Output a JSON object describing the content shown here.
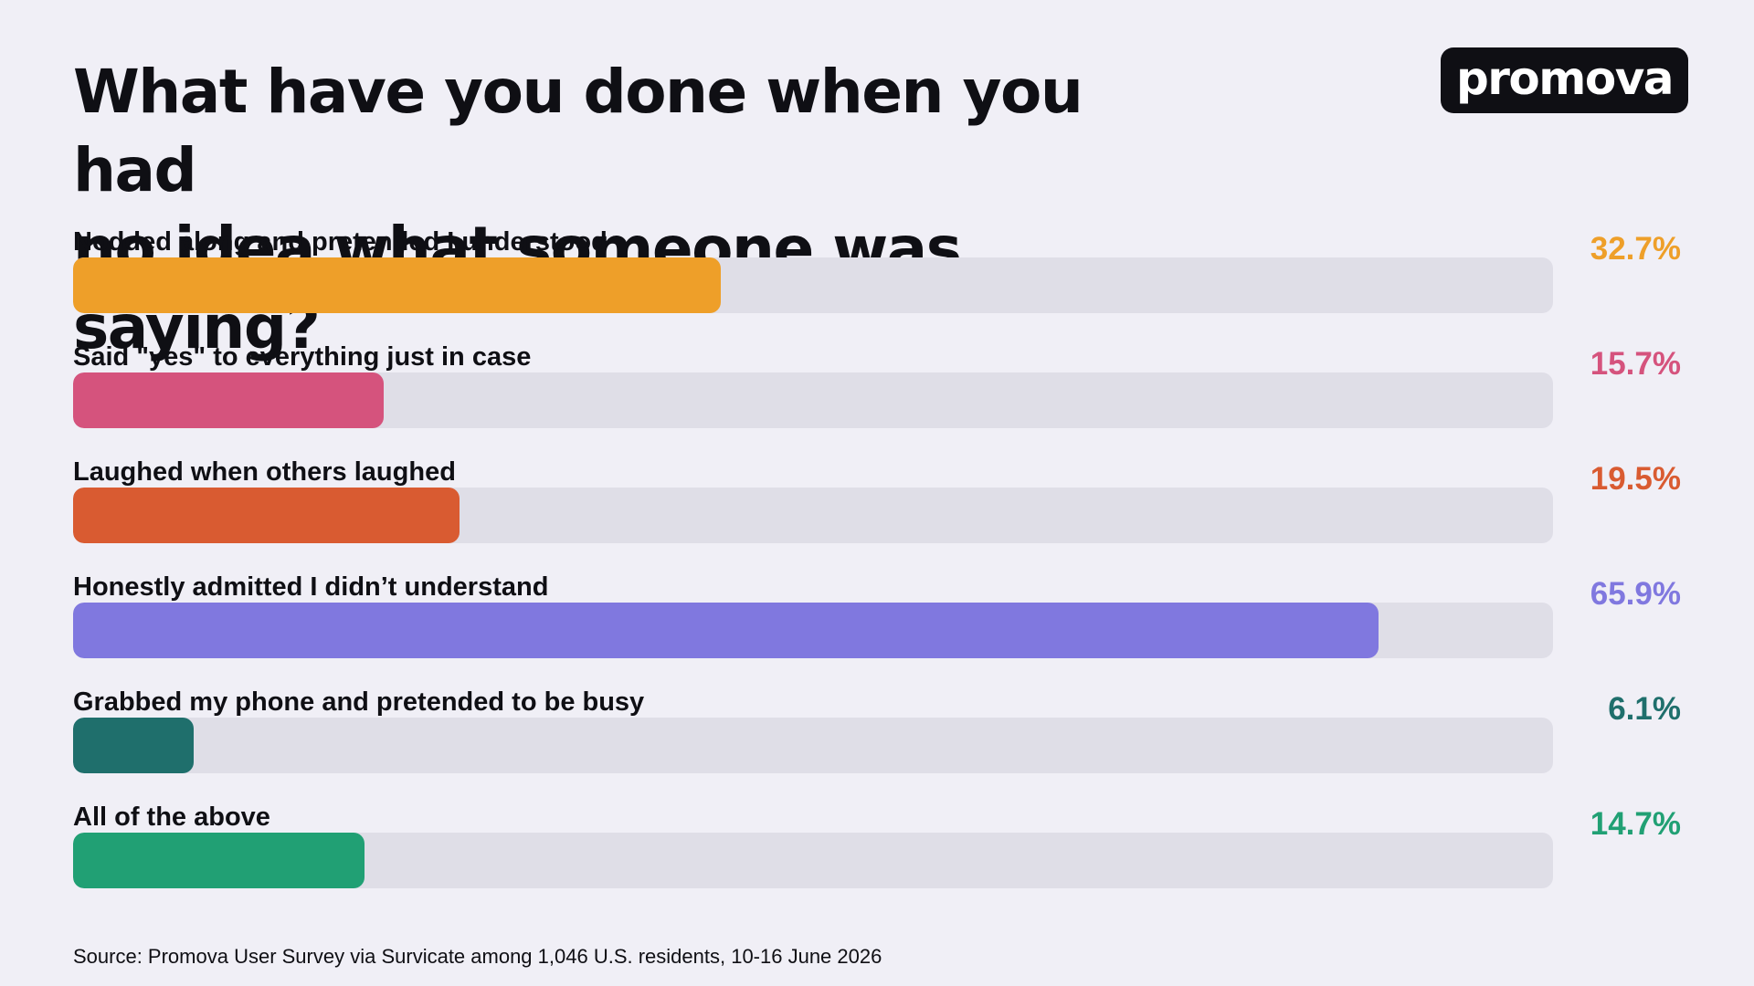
{
  "title_line1": "What have you done when you had",
  "title_line2": "no idea what someone was saying?",
  "logo": "promova",
  "source": "Source: Promova User Survey via Survicate among 1,046 U.S. residents, 10-16 June 2026",
  "chart_data": {
    "type": "bar",
    "orientation": "horizontal",
    "title": "What have you done when you had no idea what someone was saying?",
    "xlim": [
      0,
      74.7
    ],
    "categories": [
      "Nodded along and pretended I understood",
      "Said \"yes\" to everything just in case",
      "Laughed when others laughed",
      "Honestly admitted I didn’t understand",
      "Grabbed my phone and pretended to be busy",
      "All of the above"
    ],
    "values": [
      32.7,
      15.7,
      19.5,
      65.9,
      6.1,
      14.7
    ],
    "value_labels": [
      "32.7%",
      "15.7%",
      "19.5%",
      "65.9%",
      "6.1%",
      "14.7%"
    ],
    "colors": [
      "#ee9f29",
      "#d5537d",
      "#d95b31",
      "#8078df",
      "#1f6f6c",
      "#21a074"
    ],
    "track_color": "#dfdee7",
    "grid": false,
    "legend": "none"
  }
}
